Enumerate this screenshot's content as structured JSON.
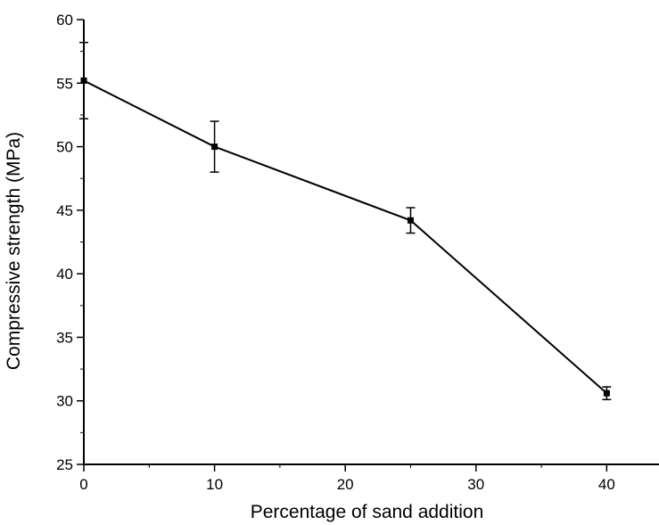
{
  "chart_data": {
    "type": "line",
    "title": "",
    "xlabel": "Percentage of sand addition",
    "ylabel": "Compressive strength (MPa)",
    "xlim": [
      0,
      44
    ],
    "ylim": [
      25,
      60
    ],
    "x_ticks": [
      0,
      10,
      20,
      30,
      40
    ],
    "y_ticks": [
      25,
      30,
      35,
      40,
      45,
      50,
      55,
      60
    ],
    "x_tick_labels": [
      "0",
      "10",
      "20",
      "30",
      "40"
    ],
    "y_tick_labels": [
      "25",
      "30",
      "35",
      "40",
      "45",
      "50",
      "55",
      "60"
    ],
    "grid": false,
    "legend": "none",
    "series": [
      {
        "x": [
          0,
          10,
          25,
          40
        ],
        "y": [
          55.2,
          50.0,
          44.2,
          30.6
        ],
        "error": [
          3.0,
          2.0,
          1.0,
          0.5
        ],
        "marker": "square",
        "color": "#000000"
      }
    ]
  }
}
